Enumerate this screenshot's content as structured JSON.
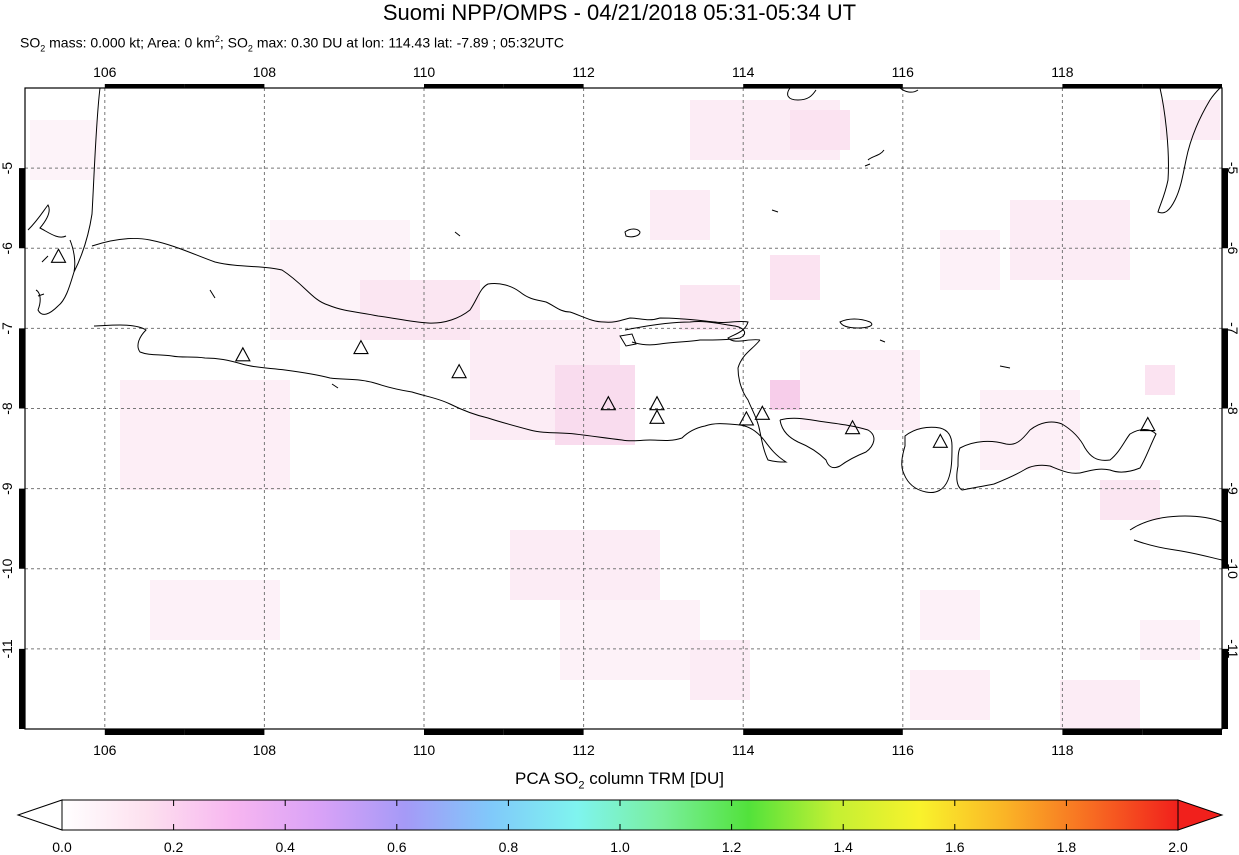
{
  "header": {
    "title": "Suomi NPP/OMPS - 04/21/2018 05:31-05:34 UT",
    "sub_mass_prefix": "SO",
    "sub_mass_sub": "2",
    "sub_mass_text": " mass: 0.000 kt; Area: 0 km",
    "sub_area_sup": "2",
    "sub_max_prefix": "; SO",
    "sub_max_sub": "2",
    "sub_max_text": " max: 0.30 DU at lon: 114.43 lat: -7.89 ; 05:32UTC"
  },
  "map": {
    "lon_ticks": [
      "106",
      "108",
      "110",
      "112",
      "114",
      "116",
      "118"
    ],
    "lat_ticks": [
      "-5",
      "-6",
      "-7",
      "-8",
      "-9",
      "-10",
      "-11"
    ],
    "lon_range": [
      105,
      120
    ],
    "lat_range": [
      -12,
      -4
    ],
    "volcanoes": [
      {
        "lon": 105.42,
        "lat": -6.1
      },
      {
        "lon": 107.73,
        "lat": -7.33
      },
      {
        "lon": 109.21,
        "lat": -7.24
      },
      {
        "lon": 110.44,
        "lat": -7.54
      },
      {
        "lon": 112.31,
        "lat": -7.94
      },
      {
        "lon": 112.92,
        "lat": -7.94
      },
      {
        "lon": 112.92,
        "lat": -8.11
      },
      {
        "lon": 114.04,
        "lat": -8.13
      },
      {
        "lon": 114.24,
        "lat": -8.06
      },
      {
        "lon": 115.37,
        "lat": -8.24
      },
      {
        "lon": 116.47,
        "lat": -8.41
      },
      {
        "lon": 119.07,
        "lat": -8.2
      }
    ]
  },
  "colorbar": {
    "title_prefix": "PCA SO",
    "title_sub": "2",
    "title_suffix": " column TRM [DU]",
    "ticks": [
      "0.0",
      "0.2",
      "0.4",
      "0.6",
      "0.8",
      "1.0",
      "1.2",
      "1.4",
      "1.6",
      "1.8",
      "2.0"
    ],
    "range": [
      0,
      2
    ],
    "colors": [
      "#ffffff",
      "#fde0ef",
      "#f7b6f0",
      "#d9a2f7",
      "#a59af7",
      "#80c9fa",
      "#7ff4ef",
      "#79ef9c",
      "#52e23b",
      "#c4f033",
      "#f9f22c",
      "#fab326",
      "#f76b22",
      "#f1201c"
    ]
  }
}
